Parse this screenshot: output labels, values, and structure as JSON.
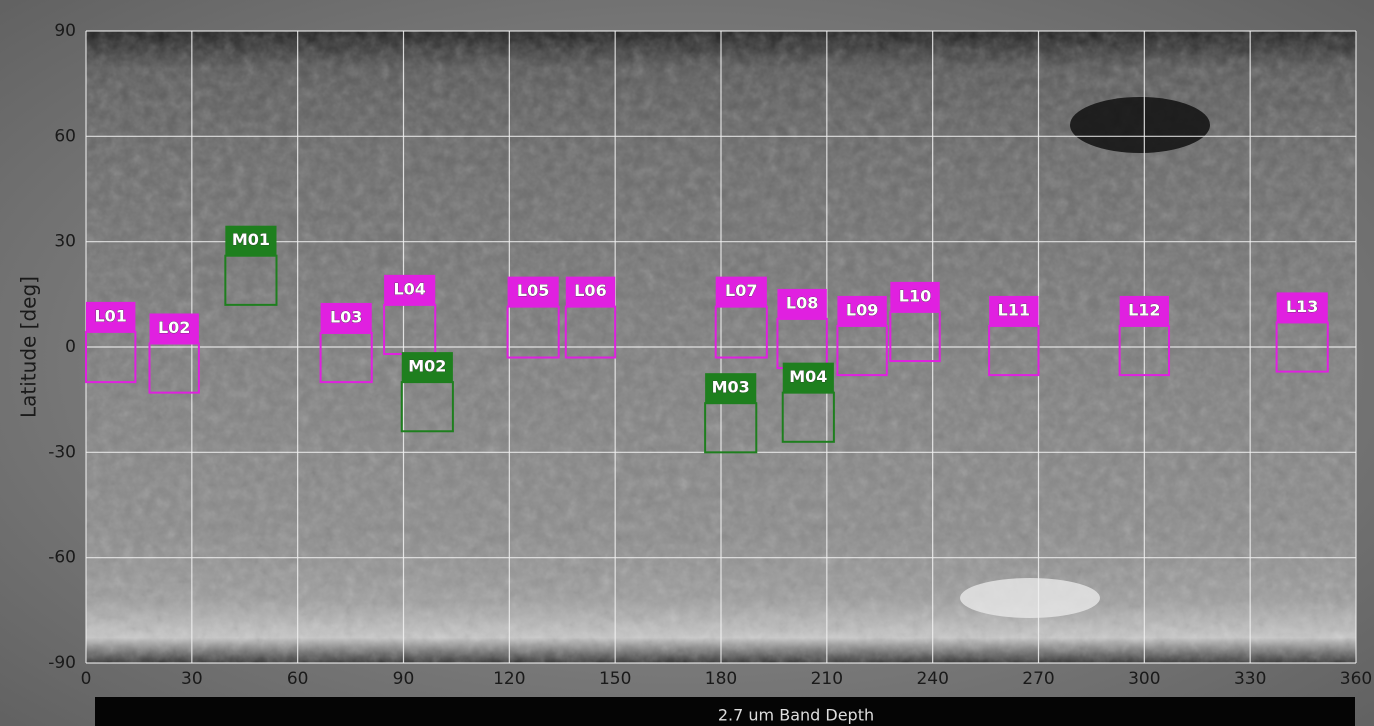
{
  "chart_data": {
    "type": "map",
    "title": "2.7 um Band Depth",
    "ylabel": "Latitude [deg]",
    "xlim": [
      0,
      360
    ],
    "ylim": [
      -90,
      90
    ],
    "xticks": [
      0,
      30,
      60,
      90,
      120,
      150,
      180,
      210,
      240,
      270,
      300,
      330,
      360
    ],
    "yticks": [
      -90,
      -60,
      -30,
      0,
      30,
      60,
      90
    ],
    "grid": true,
    "regions": [
      {
        "label": "L01",
        "color": "#e020e0",
        "lon": [
          0,
          14
        ],
        "lat": [
          -10,
          4.3
        ]
      },
      {
        "label": "L02",
        "color": "#e020e0",
        "lon": [
          18,
          32
        ],
        "lat": [
          -13,
          1
        ]
      },
      {
        "label": "L03",
        "color": "#e020e0",
        "lon": [
          66.5,
          81
        ],
        "lat": [
          -10,
          4
        ]
      },
      {
        "label": "L04",
        "color": "#e020e0",
        "lon": [
          84.5,
          99
        ],
        "lat": [
          -2,
          12
        ]
      },
      {
        "label": "M01",
        "color": "#1e7f1e",
        "lon": [
          39.5,
          54
        ],
        "lat": [
          12,
          26
        ]
      },
      {
        "label": "M02",
        "color": "#1e7f1e",
        "lon": [
          89.5,
          104
        ],
        "lat": [
          -24,
          -10
        ]
      },
      {
        "label": "L05",
        "color": "#e020e0",
        "lon": [
          119.5,
          134
        ],
        "lat": [
          -3,
          11.5
        ]
      },
      {
        "label": "L06",
        "color": "#e020e0",
        "lon": [
          136,
          150
        ],
        "lat": [
          -3,
          11.5
        ]
      },
      {
        "label": "L07",
        "color": "#e020e0",
        "lon": [
          178.5,
          193
        ],
        "lat": [
          -3,
          11.5
        ]
      },
      {
        "label": "M03",
        "color": "#1e7f1e",
        "lon": [
          175.5,
          190
        ],
        "lat": [
          -30,
          -16
        ]
      },
      {
        "label": "L08",
        "color": "#e020e0",
        "lon": [
          196,
          210
        ],
        "lat": [
          -6,
          8
        ]
      },
      {
        "label": "M04",
        "color": "#1e7f1e",
        "lon": [
          197.5,
          212
        ],
        "lat": [
          -27,
          -13
        ]
      },
      {
        "label": "L09",
        "color": "#e020e0",
        "lon": [
          213,
          227
        ],
        "lat": [
          -8,
          6
        ]
      },
      {
        "label": "L10",
        "color": "#e020e0",
        "lon": [
          228,
          242
        ],
        "lat": [
          -4,
          10
        ]
      },
      {
        "label": "L11",
        "color": "#e020e0",
        "lon": [
          256,
          270
        ],
        "lat": [
          -8,
          6
        ]
      },
      {
        "label": "L12",
        "color": "#e020e0",
        "lon": [
          293,
          307
        ],
        "lat": [
          -8,
          6
        ]
      },
      {
        "label": "L13",
        "color": "#e020e0",
        "lon": [
          337.5,
          352
        ],
        "lat": [
          -7,
          7
        ]
      }
    ]
  }
}
